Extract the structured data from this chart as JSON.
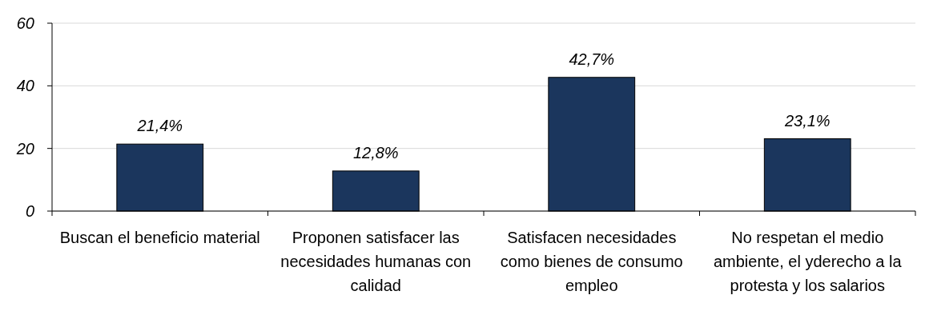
{
  "chart_data": {
    "type": "bar",
    "categories": [
      "Buscan el beneficio material",
      "Proponen satisfacer las necesidades humanas con calidad",
      "Satisfacen necesidades como bienes de consumo empleo",
      "No respetan el medio ambiente, el yderecho a la protesta y los salarios"
    ],
    "values": [
      21.4,
      12.8,
      42.7,
      23.1
    ],
    "value_labels": [
      "21,4%",
      "12,8%",
      "42,7%",
      "23,1%"
    ],
    "color": "#1b365d",
    "ylim": [
      0,
      60
    ],
    "yticks": [
      0,
      20,
      40,
      60
    ],
    "grid": "y"
  }
}
